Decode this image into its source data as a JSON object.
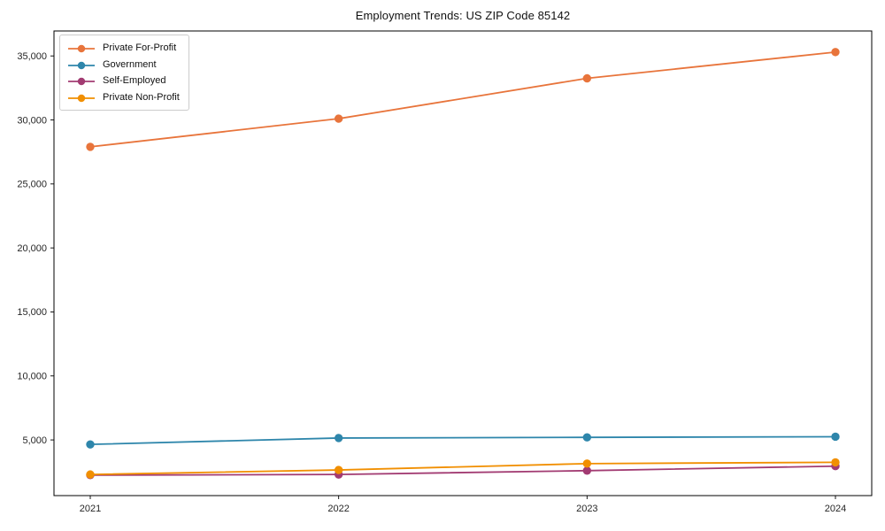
{
  "chart_data": {
    "type": "line",
    "title": "Employment Trends: US ZIP Code 85142",
    "xlabel": "",
    "ylabel": "",
    "categories": [
      "2021",
      "2022",
      "2023",
      "2024"
    ],
    "series": [
      {
        "name": "Private For-Profit",
        "color": "#E8743B",
        "values": [
          27900,
          30100,
          33250,
          35300
        ]
      },
      {
        "name": "Government",
        "color": "#2E86AB",
        "values": [
          4650,
          5150,
          5200,
          5250
        ]
      },
      {
        "name": "Self-Employed",
        "color": "#A23B72",
        "values": [
          2250,
          2300,
          2600,
          2950
        ]
      },
      {
        "name": "Private Non-Profit",
        "color": "#F18F01",
        "values": [
          2300,
          2650,
          3150,
          3250
        ]
      }
    ],
    "yticks": [
      5000,
      10000,
      15000,
      20000,
      25000,
      30000,
      35000
    ],
    "ytick_labels": [
      "5,000",
      "10,000",
      "15,000",
      "20,000",
      "25,000",
      "30,000",
      "35,000"
    ],
    "ylim": [
      650,
      36950
    ],
    "grid": "off",
    "legend_position": "upper-left",
    "axis_color": "#000000",
    "tick_label_color": "#262626"
  }
}
